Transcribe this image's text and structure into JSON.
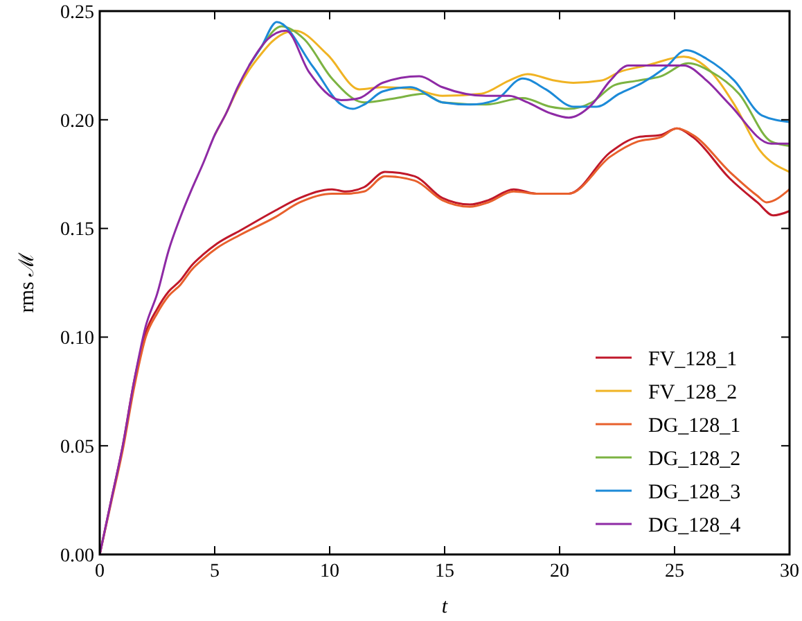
{
  "chart_data": {
    "type": "line",
    "xlabel": "t",
    "ylabel": "rms ℳ",
    "xlim": [
      0,
      30
    ],
    "ylim": [
      0,
      0.25
    ],
    "xticks": [
      0,
      5,
      10,
      15,
      20,
      25,
      30
    ],
    "yticks": [
      {
        "value": 0,
        "label": "0.00"
      },
      {
        "value": 0.05,
        "label": "0.05"
      },
      {
        "value": 0.1,
        "label": "0.10"
      },
      {
        "value": 0.15,
        "label": "0.15"
      },
      {
        "value": 0.2,
        "label": "0.20"
      },
      {
        "value": 0.25,
        "label": "0.25"
      }
    ],
    "grid": false,
    "legend": "bottom right",
    "marker": "none",
    "line_style": "solid",
    "series": [
      {
        "name": "FV_128_1",
        "color": "#c0182a",
        "x": [
          0,
          0.5,
          1,
          1.5,
          2,
          2.5,
          3,
          3.5,
          4,
          4.5,
          5.1,
          6.1,
          7.6,
          8.7,
          10.1,
          10.7,
          11.5,
          12.4,
          13.7,
          14.9,
          16.1,
          16.9,
          18,
          19,
          20.4,
          22.2,
          23.4,
          24.4,
          25.1,
          25.8,
          27.4,
          28.6,
          29.3,
          30
        ],
        "values": [
          0,
          0.025,
          0.05,
          0.08,
          0.102,
          0.113,
          0.121,
          0.126,
          0.133,
          0.138,
          0.143,
          0.149,
          0.158,
          0.164,
          0.168,
          0.167,
          0.169,
          0.176,
          0.174,
          0.164,
          0.161,
          0.163,
          0.168,
          0.166,
          0.166,
          0.185,
          0.192,
          0.193,
          0.196,
          0.192,
          0.173,
          0.162,
          0.156,
          0.158
        ]
      },
      {
        "name": "FV_128_2",
        "color": "#f0b323",
        "x": [
          5,
          5.5,
          6,
          6.5,
          7,
          7.5,
          8.5,
          9.9,
          11.3,
          12.3,
          13.7,
          14.9,
          16.6,
          17.8,
          18.6,
          19.8,
          20.6,
          21.8,
          22.6,
          23.8,
          25.4,
          26.4,
          27.6,
          28.7,
          30
        ],
        "values": [
          0.193,
          0.203,
          0.214,
          0.223,
          0.23,
          0.236,
          0.241,
          0.23,
          0.214,
          0.215,
          0.214,
          0.211,
          0.212,
          0.218,
          0.221,
          0.218,
          0.217,
          0.218,
          0.222,
          0.225,
          0.229,
          0.224,
          0.207,
          0.186,
          0.176
        ]
      },
      {
        "name": "DG_128_1",
        "color": "#e8602c",
        "x": [
          0,
          0.5,
          1,
          1.5,
          2,
          2.5,
          3,
          3.5,
          4,
          4.5,
          5.1,
          6.1,
          7.6,
          8.7,
          10.1,
          10.7,
          11.5,
          12.4,
          13.7,
          14.9,
          16.1,
          16.9,
          18,
          19,
          20.4,
          22.2,
          23.4,
          24.4,
          25.1,
          25.8,
          27.4,
          28.6,
          29,
          30
        ],
        "values": [
          0,
          0.024,
          0.048,
          0.077,
          0.1,
          0.111,
          0.119,
          0.124,
          0.131,
          0.136,
          0.141,
          0.147,
          0.155,
          0.162,
          0.166,
          0.166,
          0.167,
          0.174,
          0.172,
          0.163,
          0.16,
          0.162,
          0.167,
          0.166,
          0.166,
          0.183,
          0.19,
          0.192,
          0.196,
          0.193,
          0.176,
          0.165,
          0.162,
          0.168
        ]
      },
      {
        "name": "DG_128_2",
        "color": "#7cb342",
        "x": [
          6.5,
          7,
          7.9,
          8.9,
          10.1,
          11.5,
          12.9,
          14.1,
          14.9,
          16.8,
          18.4,
          19.6,
          20.4,
          21.4,
          22.4,
          23.4,
          24.4,
          25.6,
          26.6,
          27.8,
          29.2,
          30
        ],
        "values": [
          0.225,
          0.233,
          0.243,
          0.237,
          0.219,
          0.208,
          0.21,
          0.212,
          0.208,
          0.207,
          0.21,
          0.206,
          0.205,
          0.208,
          0.216,
          0.218,
          0.22,
          0.226,
          0.222,
          0.212,
          0.19,
          0.188
        ]
      },
      {
        "name": "DG_128_3",
        "color": "#1c8ad8",
        "x": [
          6.5,
          7,
          7.7,
          9.3,
          10.5,
          11,
          11.5,
          12.3,
          13.5,
          14.9,
          16.1,
          17.2,
          18.4,
          19.4,
          20.6,
          21.6,
          22.6,
          23.6,
          24.6,
          25.5,
          26.4,
          27.6,
          28.8,
          30
        ],
        "values": [
          0.225,
          0.233,
          0.245,
          0.224,
          0.207,
          0.205,
          0.207,
          0.213,
          0.215,
          0.208,
          0.207,
          0.209,
          0.219,
          0.214,
          0.206,
          0.206,
          0.212,
          0.217,
          0.224,
          0.232,
          0.228,
          0.218,
          0.202,
          0.199
        ]
      },
      {
        "name": "DG_128_4",
        "color": "#8e2aa5",
        "x": [
          0,
          0.5,
          1,
          1.5,
          2,
          2.5,
          3,
          3.5,
          4,
          4.5,
          5,
          5.5,
          6,
          6.5,
          7.3,
          8.1,
          9.1,
          10.5,
          11.3,
          12.3,
          13.9,
          14.9,
          16.8,
          17.8,
          18.6,
          19.6,
          20.4,
          21.4,
          22.2,
          23,
          24.2,
          25.4,
          26.4,
          27.4,
          29.2,
          30
        ],
        "values": [
          0,
          0.025,
          0.05,
          0.08,
          0.105,
          0.12,
          0.14,
          0.155,
          0.168,
          0.18,
          0.193,
          0.203,
          0.215,
          0.225,
          0.237,
          0.241,
          0.222,
          0.209,
          0.21,
          0.217,
          0.22,
          0.215,
          0.211,
          0.211,
          0.208,
          0.203,
          0.201,
          0.207,
          0.218,
          0.225,
          0.225,
          0.225,
          0.218,
          0.207,
          0.189,
          0.189
        ]
      }
    ]
  }
}
